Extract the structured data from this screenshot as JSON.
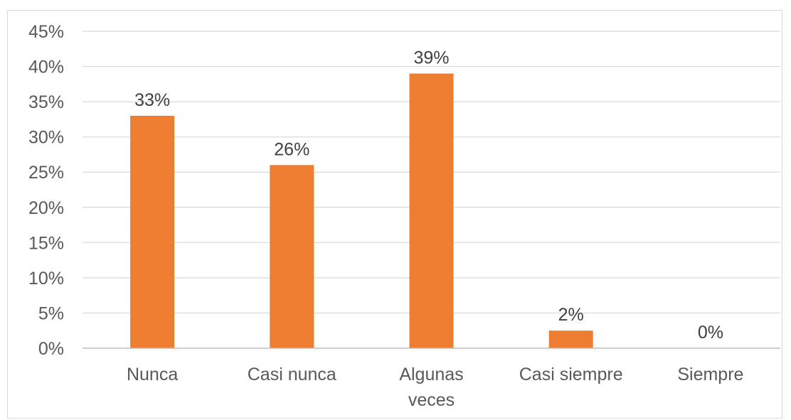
{
  "chart_data": {
    "type": "bar",
    "categories": [
      "Nunca",
      "Casi nunca",
      "Algunas veces",
      "Casi siempre",
      "Siempre"
    ],
    "category_lines": [
      [
        "Nunca"
      ],
      [
        "Casi nunca"
      ],
      [
        "Algunas",
        "veces"
      ],
      [
        "Casi siempre"
      ],
      [
        "Siempre"
      ]
    ],
    "values": [
      33,
      26,
      39,
      2.5,
      0
    ],
    "data_labels": [
      "33%",
      "26%",
      "39%",
      "2%",
      "0%"
    ],
    "ylim": [
      0,
      45
    ],
    "yticks": [
      0,
      5,
      10,
      15,
      20,
      25,
      30,
      35,
      40,
      45
    ],
    "ytick_labels": [
      "0%",
      "5%",
      "10%",
      "15%",
      "20%",
      "25%",
      "30%",
      "35%",
      "40%",
      "45%"
    ],
    "grid": true,
    "bar_color": "#ED7D31",
    "grid_color": "#D9D9D9",
    "axis_color": "#BFBFBF"
  }
}
